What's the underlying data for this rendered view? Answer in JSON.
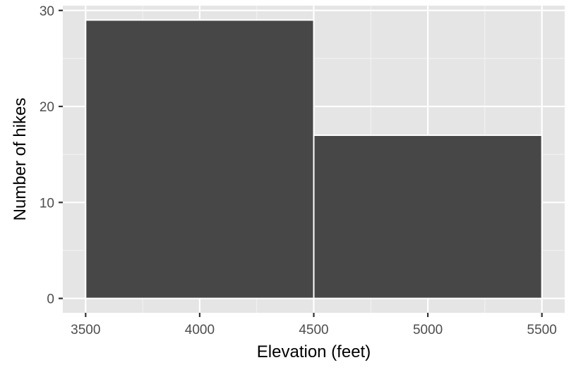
{
  "chart_data": {
    "type": "bar",
    "subtype": "histogram",
    "title": "",
    "xlabel": "Elevation (feet)",
    "ylabel": "Number of hikes",
    "bins": [
      {
        "start": 3500,
        "end": 4500,
        "count": 29
      },
      {
        "start": 4500,
        "end": 5500,
        "count": 17
      }
    ],
    "xlim": [
      3400,
      5600
    ],
    "ylim": [
      -1.5,
      30.5
    ],
    "x_ticks": [
      3500,
      4000,
      4500,
      5000,
      5500
    ],
    "x_tick_labels": [
      "3500",
      "4000",
      "4500",
      "5000",
      "5500"
    ],
    "x_minor_ticks": [
      3750,
      4250,
      4750,
      5250
    ],
    "y_ticks": [
      0,
      10,
      20,
      30
    ],
    "y_tick_labels": [
      "0",
      "10",
      "20",
      "30"
    ],
    "y_minor_ticks": [
      5,
      15,
      25
    ],
    "grid": true,
    "legend": "none",
    "colors": {
      "bar_fill": "#474747",
      "bar_outline": "#ffffff",
      "panel_background": "#e5e5e5",
      "grid_major": "#ffffff",
      "grid_minor": "#f2f2f2",
      "tick_label": "#4d4d4d",
      "axis_title": "#000000",
      "tick_mark": "#333333"
    }
  }
}
